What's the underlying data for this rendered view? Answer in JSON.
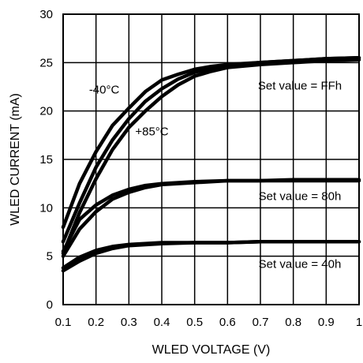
{
  "chart_data": {
    "type": "line",
    "title": "",
    "xlabel": "WLED VOLTAGE (V)",
    "ylabel": "WLED CURRENT (mA)",
    "xlim": [
      0.1,
      1.0
    ],
    "ylim": [
      0,
      30
    ],
    "grid": true,
    "legend": "none",
    "x_ticks": [
      "0.1",
      "0.2",
      "0.3",
      "0.4",
      "0.5",
      "0.6",
      "0.7",
      "0.8",
      "0.9",
      "1"
    ],
    "y_ticks": [
      "0",
      "5",
      "10",
      "15",
      "20",
      "25",
      "30"
    ],
    "line_color": "#000000",
    "series": [
      {
        "group": "FFh",
        "x": [
          0.1,
          0.15,
          0.2,
          0.25,
          0.3,
          0.35,
          0.4,
          0.45,
          0.5,
          0.55,
          0.6,
          0.7,
          0.8,
          0.9,
          1.0
        ],
        "values": [
          8.0,
          12.5,
          15.8,
          18.5,
          20.3,
          22.0,
          23.2,
          23.8,
          24.3,
          24.6,
          24.8,
          25.0,
          25.2,
          25.4,
          25.5
        ]
      },
      {
        "group": "FFh",
        "x": [
          0.1,
          0.15,
          0.2,
          0.25,
          0.3,
          0.35,
          0.4,
          0.45,
          0.5,
          0.55,
          0.6,
          0.7,
          0.8,
          0.9,
          1.0
        ],
        "values": [
          6.5,
          10.5,
          14.2,
          17.0,
          19.2,
          21.0,
          22.3,
          23.3,
          24.0,
          24.4,
          24.7,
          25.0,
          25.2,
          25.4,
          25.5
        ]
      },
      {
        "group": "FFh",
        "x": [
          0.1,
          0.15,
          0.2,
          0.25,
          0.3,
          0.35,
          0.4,
          0.45,
          0.5,
          0.55,
          0.6,
          0.7,
          0.8,
          0.9,
          1.0
        ],
        "values": [
          5.3,
          9.5,
          13.0,
          16.0,
          18.3,
          20.0,
          21.5,
          22.7,
          23.6,
          24.1,
          24.5,
          24.8,
          25.0,
          25.2,
          25.3
        ]
      },
      {
        "group": "80h",
        "x": [
          0.1,
          0.15,
          0.2,
          0.25,
          0.3,
          0.35,
          0.4,
          0.5,
          0.6,
          0.7,
          0.8,
          0.9,
          1.0
        ],
        "values": [
          5.5,
          8.8,
          10.3,
          11.3,
          11.9,
          12.3,
          12.5,
          12.7,
          12.8,
          12.8,
          12.9,
          12.9,
          12.9
        ]
      },
      {
        "group": "80h",
        "x": [
          0.1,
          0.15,
          0.2,
          0.25,
          0.3,
          0.35,
          0.4,
          0.5,
          0.6,
          0.7,
          0.8,
          0.9,
          1.0
        ],
        "values": [
          5.0,
          7.8,
          9.6,
          10.9,
          11.6,
          12.1,
          12.4,
          12.6,
          12.8,
          12.8,
          12.8,
          12.8,
          12.8
        ]
      },
      {
        "group": "40h",
        "x": [
          0.1,
          0.15,
          0.2,
          0.25,
          0.3,
          0.4,
          0.5,
          0.6,
          0.7,
          0.8,
          0.9,
          1.0
        ],
        "values": [
          3.8,
          4.9,
          5.6,
          6.0,
          6.2,
          6.4,
          6.4,
          6.4,
          6.5,
          6.5,
          6.5,
          6.5
        ]
      },
      {
        "group": "40h",
        "x": [
          0.1,
          0.15,
          0.2,
          0.25,
          0.3,
          0.4,
          0.5,
          0.6,
          0.7,
          0.8,
          0.9,
          1.0
        ],
        "values": [
          3.5,
          4.5,
          5.3,
          5.8,
          6.1,
          6.3,
          6.4,
          6.4,
          6.5,
          6.5,
          6.5,
          6.5
        ]
      }
    ],
    "annotations": [
      {
        "text": "-40°C",
        "x": 0.225,
        "y": 21.8
      },
      {
        "text": "+85°C",
        "x": 0.37,
        "y": 17.5
      },
      {
        "text": "Set value = FFh",
        "x": 0.82,
        "y": 22.2
      },
      {
        "text": "Set value = 80h",
        "x": 0.82,
        "y": 10.8
      },
      {
        "text": "Set value = 40h",
        "x": 0.82,
        "y": 3.8
      }
    ]
  }
}
